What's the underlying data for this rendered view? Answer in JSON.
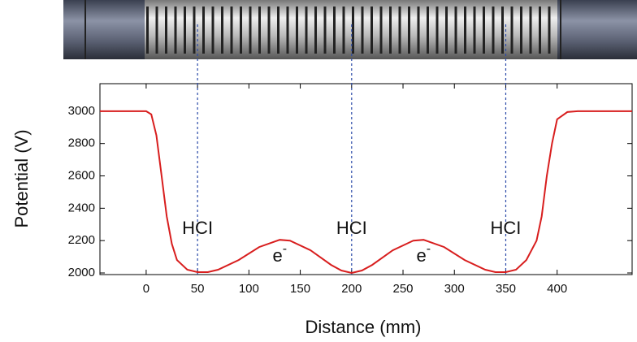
{
  "chart_data": {
    "type": "line",
    "x_label": "Distance (mm)",
    "y_label": "Potential (V)",
    "xlim": [
      -45,
      473
    ],
    "ylim": [
      1990,
      3170
    ],
    "xticks": [
      0,
      50,
      100,
      150,
      200,
      250,
      300,
      350,
      400
    ],
    "yticks": [
      2000,
      2200,
      2400,
      2600,
      2800,
      3000
    ],
    "series": [
      {
        "color": "#d81e1e",
        "x": [
          -45,
          0,
          5,
          10,
          15,
          20,
          25,
          30,
          40,
          50,
          60,
          70,
          90,
          110,
          130,
          140,
          160,
          180,
          190,
          200,
          210,
          220,
          240,
          260,
          270,
          290,
          310,
          330,
          340,
          350,
          360,
          370,
          380,
          385,
          390,
          395,
          400,
          410,
          420,
          473
        ],
        "values": [
          3000,
          3000,
          2980,
          2850,
          2600,
          2350,
          2180,
          2080,
          2020,
          2005,
          2005,
          2020,
          2080,
          2160,
          2205,
          2200,
          2140,
          2050,
          2015,
          2000,
          2015,
          2050,
          2140,
          2200,
          2205,
          2160,
          2080,
          2020,
          2005,
          2005,
          2020,
          2080,
          2200,
          2350,
          2600,
          2800,
          2950,
          2995,
          3000,
          3000
        ]
      }
    ],
    "markers": [
      50,
      200,
      350
    ],
    "annotations": [
      {
        "text": "HCI",
        "x": 50,
        "y": 2270
      },
      {
        "text": "HCI",
        "x": 200,
        "y": 2270
      },
      {
        "text": "HCI",
        "x": 350,
        "y": 2270
      },
      {
        "text": "e",
        "sup": "-",
        "x": 130,
        "y": 2100
      },
      {
        "text": "e",
        "sup": "-",
        "x": 270,
        "y": 2100
      }
    ]
  }
}
